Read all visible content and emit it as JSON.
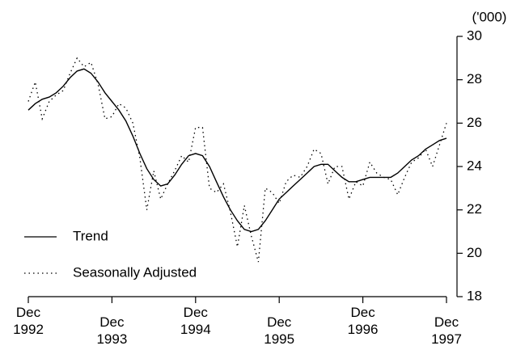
{
  "chart_data": {
    "type": "line",
    "y_label": "('000)",
    "categories": [
      "Dec 1992",
      null,
      null,
      null,
      null,
      null,
      null,
      null,
      null,
      null,
      null,
      null,
      "Dec 1993",
      null,
      null,
      null,
      null,
      null,
      null,
      null,
      null,
      null,
      null,
      null,
      "Dec 1994",
      null,
      null,
      null,
      null,
      null,
      null,
      null,
      null,
      null,
      null,
      null,
      "Dec 1995",
      null,
      null,
      null,
      null,
      null,
      null,
      null,
      null,
      null,
      null,
      null,
      "Dec 1996",
      null,
      null,
      null,
      null,
      null,
      null,
      null,
      null,
      null,
      null,
      null,
      "Dec 1997"
    ],
    "series": [
      {
        "name": "Trend",
        "color": "#000000",
        "style": "solid",
        "values": [
          26.6,
          26.9,
          27.1,
          27.2,
          27.4,
          27.7,
          28.1,
          28.4,
          28.5,
          28.3,
          27.9,
          27.4,
          27.0,
          26.6,
          26.1,
          25.4,
          24.6,
          23.9,
          23.4,
          23.1,
          23.2,
          23.6,
          24.1,
          24.5,
          24.6,
          24.5,
          24.0,
          23.3,
          22.6,
          22.0,
          21.5,
          21.1,
          21.0,
          21.1,
          21.5,
          22.0,
          22.5,
          22.8,
          23.1,
          23.4,
          23.7,
          24.0,
          24.1,
          24.1,
          23.8,
          23.5,
          23.3,
          23.3,
          23.4,
          23.5,
          23.5,
          23.5,
          23.5,
          23.7,
          24.0,
          24.3,
          24.5,
          24.8,
          25.0,
          25.2,
          25.3
        ]
      },
      {
        "name": "Seasonally Adjusted",
        "color": "#000000",
        "style": "dotted",
        "values": [
          27.0,
          27.9,
          26.2,
          27.0,
          27.3,
          27.5,
          28.3,
          29.0,
          28.6,
          28.8,
          27.8,
          26.2,
          26.3,
          26.9,
          26.7,
          26.0,
          24.4,
          22.0,
          23.8,
          22.5,
          23.2,
          23.8,
          24.5,
          24.2,
          25.8,
          25.8,
          23.0,
          22.8,
          23.2,
          21.9,
          20.3,
          22.2,
          20.8,
          19.6,
          23.0,
          22.8,
          22.3,
          23.3,
          23.6,
          23.5,
          24.0,
          24.8,
          24.6,
          23.2,
          24.0,
          24.0,
          22.5,
          23.3,
          23.1,
          24.2,
          23.7,
          23.5,
          23.4,
          22.7,
          23.5,
          24.2,
          24.4,
          24.8,
          24.0,
          25.0,
          26.0
        ]
      }
    ],
    "ylim": [
      18,
      30
    ],
    "yticks": [
      18,
      20,
      22,
      24,
      26,
      28,
      30
    ],
    "y_axis_side": "right",
    "legend": "lower left",
    "grid": false
  }
}
